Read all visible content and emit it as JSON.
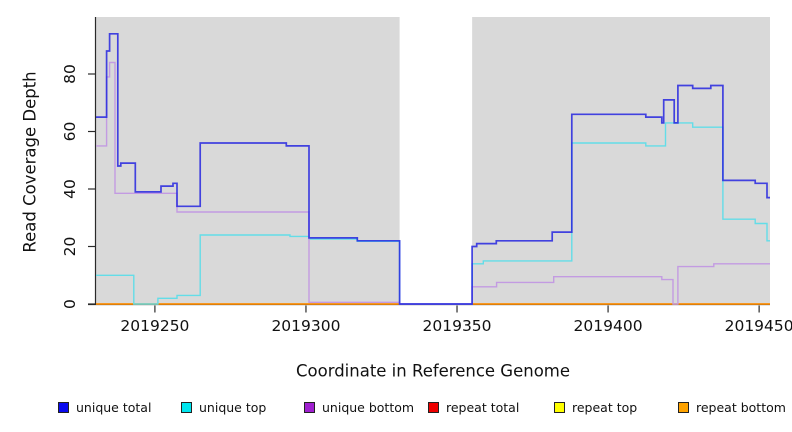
{
  "chart_data": {
    "type": "line",
    "style": "step-after",
    "title": "",
    "xlabel": "Coordinate in Reference Genome",
    "ylabel": "Read Coverage Depth",
    "xlim": [
      2019230.5,
      2019453.6
    ],
    "ylim": [
      0,
      100
    ],
    "xticks": [
      2019250,
      2019300,
      2019350,
      2019400,
      2019450
    ],
    "yticks": [
      0,
      20,
      40,
      60,
      80
    ],
    "grid": false,
    "plot_bg": "#d9d9d9",
    "axis_color": "#2a2a2a",
    "gap_region": {
      "start": 2019331,
      "end": 2019355,
      "color": "#ffffff"
    },
    "legend_position": "bottom",
    "series": [
      {
        "name": "unique total",
        "line_color": "#2626df",
        "legend_color": "#0a0aee",
        "line_width": 1.7,
        "opacity": 0.85,
        "draw_order": 6,
        "segments": [
          [
            [
              2019230.5,
              65
            ],
            [
              2019234,
              88
            ],
            [
              2019235,
              94
            ],
            [
              2019237.7,
              48
            ],
            [
              2019238.7,
              49
            ],
            [
              2019243.5,
              39
            ],
            [
              2019252,
              41
            ],
            [
              2019256,
              42
            ],
            [
              2019257.3,
              34
            ],
            [
              2019265,
              56
            ],
            [
              2019293.5,
              55
            ],
            [
              2019301,
              23
            ],
            [
              2019317,
              22
            ],
            [
              2019331,
              0
            ],
            [
              2019355,
              20
            ],
            [
              2019356.5,
              21
            ],
            [
              2019363,
              22
            ],
            [
              2019381.5,
              25
            ],
            [
              2019388,
              66
            ],
            [
              2019412.5,
              65
            ],
            [
              2019417.8,
              63
            ],
            [
              2019418.4,
              71
            ],
            [
              2019421.9,
              63
            ],
            [
              2019423.1,
              76
            ],
            [
              2019428,
              75
            ],
            [
              2019434,
              76
            ],
            [
              2019438,
              43
            ],
            [
              2019448.7,
              42
            ],
            [
              2019452.6,
              37
            ],
            [
              2019453.6,
              37
            ]
          ]
        ]
      },
      {
        "name": "unique top",
        "line_color": "#63dde8",
        "legend_color": "#00e5ee",
        "line_width": 1.4,
        "opacity": 1,
        "draw_order": 4,
        "segments": [
          [
            [
              2019230.5,
              10
            ],
            [
              2019243,
              0
            ],
            [
              2019251,
              2
            ],
            [
              2019257.3,
              3
            ],
            [
              2019265,
              24
            ],
            [
              2019294.7,
              23.5
            ],
            [
              2019301,
              22.6
            ],
            [
              2019317,
              21.8
            ],
            [
              2019331,
              0
            ],
            [
              2019355,
              14
            ],
            [
              2019358.7,
              15
            ],
            [
              2019388,
              56
            ],
            [
              2019412.5,
              55
            ],
            [
              2019419,
              63
            ],
            [
              2019428,
              61.5
            ],
            [
              2019438,
              29.5
            ],
            [
              2019448.7,
              28
            ],
            [
              2019452.6,
              22
            ],
            [
              2019453.6,
              22
            ]
          ]
        ]
      },
      {
        "name": "unique bottom",
        "line_color": "#c39be2",
        "legend_color": "#a020d0",
        "line_width": 1.4,
        "opacity": 1,
        "draw_order": 5,
        "segments": [
          [
            [
              2019230.5,
              55
            ],
            [
              2019234,
              79
            ],
            [
              2019235,
              84
            ],
            [
              2019236.8,
              38.5
            ],
            [
              2019257.3,
              32
            ],
            [
              2019301,
              0.6
            ],
            [
              2019331,
              0
            ],
            [
              2019355,
              6
            ],
            [
              2019363.1,
              7.5
            ],
            [
              2019382,
              9.5
            ],
            [
              2019417.8,
              8.5
            ],
            [
              2019421.5,
              0
            ],
            [
              2019423.1,
              13
            ],
            [
              2019435,
              14
            ],
            [
              2019453.6,
              14
            ]
          ]
        ]
      },
      {
        "name": "repeat total",
        "line_color": "#dd2222",
        "legend_color": "#ee0000",
        "line_width": 1.2,
        "opacity": 1,
        "draw_order": 1,
        "segments": [
          [
            [
              2019230.5,
              0
            ],
            [
              2019331,
              0
            ]
          ],
          [
            [
              2019355,
              0
            ],
            [
              2019453.6,
              0
            ]
          ]
        ]
      },
      {
        "name": "repeat top",
        "line_color": "#eeee33",
        "legend_color": "#ffff00",
        "line_width": 1.2,
        "opacity": 1,
        "draw_order": 2,
        "segments": [
          [
            [
              2019230.5,
              0
            ],
            [
              2019331,
              0
            ]
          ],
          [
            [
              2019355,
              0
            ],
            [
              2019453.6,
              0
            ]
          ]
        ]
      },
      {
        "name": "repeat bottom",
        "line_color": "#ff8c00",
        "legend_color": "#ffa300",
        "line_width": 1.6,
        "opacity": 1,
        "draw_order": 3,
        "segments": [
          [
            [
              2019230.5,
              0
            ],
            [
              2019331,
              0
            ]
          ],
          [
            [
              2019355,
              0
            ],
            [
              2019453.6,
              0
            ]
          ]
        ]
      }
    ]
  }
}
